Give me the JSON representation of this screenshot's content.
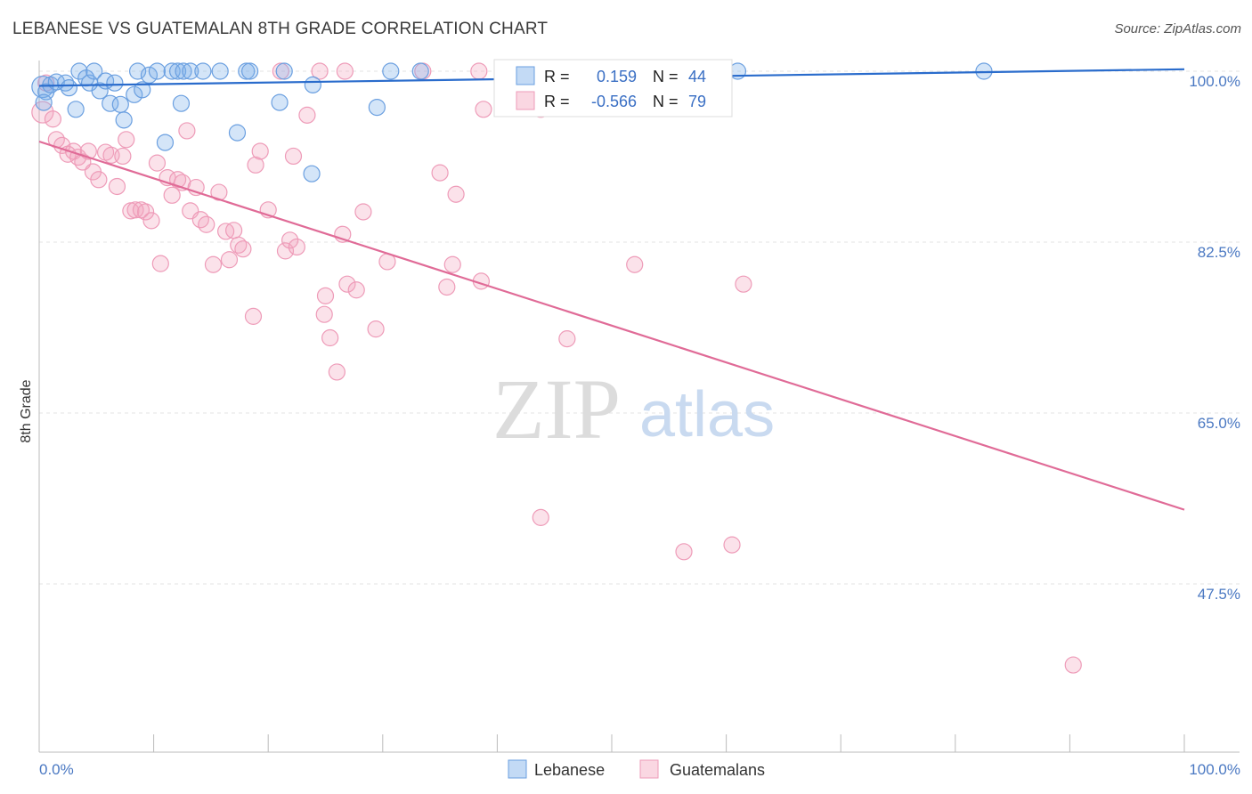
{
  "title": "LEBANESE VS GUATEMALAN 8TH GRADE CORRELATION CHART",
  "source": "Source: ZipAtlas.com",
  "chart_data": {
    "type": "scatter",
    "title": "LEBANESE VS GUATEMALAN 8TH GRADE CORRELATION CHART",
    "xlabel": "",
    "ylabel": "8th Grade",
    "xlim": [
      0,
      100
    ],
    "ylim": [
      34,
      100
    ],
    "x_tick_labels": [
      "0.0%",
      "100.0%"
    ],
    "y_ticks": [
      47.5,
      65.0,
      82.5,
      100.0
    ],
    "y_tick_labels": [
      "47.5%",
      "65.0%",
      "82.5%",
      "100.0%"
    ],
    "grid": true,
    "legend_position": "top-center",
    "watermark": {
      "zip": "ZIP",
      "atlas": "atlas"
    },
    "colors": {
      "lebanese": "#7aaee8",
      "lebanese_line": "#2a6ccc",
      "guatemalans": "#f4a6bf",
      "guatemalans_line": "#e06b97"
    },
    "stats": [
      {
        "r_label": "R =",
        "r_value": "0.159",
        "n_label": "N =",
        "n_value": "44"
      },
      {
        "r_label": "R =",
        "r_value": "-0.566",
        "n_label": "N =",
        "n_value": "79"
      }
    ],
    "series": [
      {
        "name": "Lebanese",
        "trend": [
          [
            0,
            98.5
          ],
          [
            100,
            100.2
          ]
        ],
        "points": [
          [
            0.3,
            98.4
          ],
          [
            0.6,
            97.9
          ],
          [
            1.0,
            98.6
          ],
          [
            1.5,
            98.9
          ],
          [
            2.3,
            98.8
          ],
          [
            3.2,
            96.1
          ],
          [
            3.5,
            100.0
          ],
          [
            4.1,
            99.3
          ],
          [
            4.4,
            98.8
          ],
          [
            4.8,
            100.0
          ],
          [
            5.3,
            98.0
          ],
          [
            5.8,
            99.0
          ],
          [
            6.2,
            96.7
          ],
          [
            7.1,
            96.6
          ],
          [
            7.4,
            95.0
          ],
          [
            8.3,
            97.6
          ],
          [
            8.6,
            100.0
          ],
          [
            9.0,
            98.1
          ],
          [
            9.6,
            99.6
          ],
          [
            10.3,
            100.0
          ],
          [
            11.0,
            92.7
          ],
          [
            11.6,
            100.0
          ],
          [
            12.1,
            100.0
          ],
          [
            12.4,
            96.7
          ],
          [
            12.6,
            100.0
          ],
          [
            13.2,
            100.0
          ],
          [
            14.3,
            100.0
          ],
          [
            15.8,
            100.0
          ],
          [
            17.3,
            93.7
          ],
          [
            18.1,
            100.0
          ],
          [
            18.4,
            100.0
          ],
          [
            21.0,
            96.8
          ],
          [
            21.4,
            100.0
          ],
          [
            23.8,
            89.5
          ],
          [
            23.9,
            98.6
          ],
          [
            29.5,
            96.3
          ],
          [
            30.7,
            100.0
          ],
          [
            33.3,
            100.0
          ],
          [
            41.1,
            100.0
          ],
          [
            61.0,
            100.0
          ],
          [
            82.5,
            100.0
          ],
          [
            0.4,
            96.8
          ],
          [
            2.6,
            98.3
          ],
          [
            6.6,
            98.8
          ]
        ],
        "radii": [
          12,
          9,
          9,
          9,
          9,
          9,
          9,
          9,
          9,
          9,
          9,
          9,
          9,
          9,
          9,
          9,
          9,
          9,
          9,
          9,
          9,
          9,
          9,
          9,
          9,
          9,
          9,
          9,
          9,
          9,
          9,
          9,
          9,
          9,
          9,
          9,
          9,
          9,
          9,
          9,
          9,
          9,
          9,
          9
        ]
      },
      {
        "name": "Guatemalans",
        "trend": [
          [
            0,
            92.8
          ],
          [
            100,
            55.1
          ]
        ],
        "points": [
          [
            0.3,
            95.8
          ],
          [
            0.6,
            98.8
          ],
          [
            1.2,
            95.1
          ],
          [
            1.5,
            93.0
          ],
          [
            2.0,
            92.4
          ],
          [
            2.5,
            91.5
          ],
          [
            3.0,
            91.8
          ],
          [
            3.4,
            91.2
          ],
          [
            3.8,
            90.7
          ],
          [
            4.3,
            91.8
          ],
          [
            4.7,
            89.7
          ],
          [
            5.2,
            88.9
          ],
          [
            5.8,
            91.7
          ],
          [
            6.3,
            91.4
          ],
          [
            6.8,
            88.2
          ],
          [
            7.3,
            91.3
          ],
          [
            7.6,
            93.0
          ],
          [
            8.0,
            85.7
          ],
          [
            8.4,
            85.8
          ],
          [
            8.9,
            85.8
          ],
          [
            9.3,
            85.6
          ],
          [
            9.8,
            84.7
          ],
          [
            10.3,
            90.6
          ],
          [
            10.6,
            80.3
          ],
          [
            11.2,
            89.1
          ],
          [
            11.6,
            87.3
          ],
          [
            12.1,
            88.9
          ],
          [
            12.5,
            88.6
          ],
          [
            12.9,
            93.9
          ],
          [
            13.2,
            85.7
          ],
          [
            13.7,
            88.1
          ],
          [
            14.1,
            84.8
          ],
          [
            14.6,
            84.3
          ],
          [
            15.2,
            80.2
          ],
          [
            15.7,
            87.6
          ],
          [
            16.3,
            83.6
          ],
          [
            16.6,
            80.7
          ],
          [
            17.0,
            83.7
          ],
          [
            17.4,
            82.2
          ],
          [
            17.8,
            81.8
          ],
          [
            18.7,
            74.9
          ],
          [
            18.9,
            90.4
          ],
          [
            19.3,
            91.8
          ],
          [
            20.0,
            85.8
          ],
          [
            21.1,
            100.0
          ],
          [
            21.5,
            81.6
          ],
          [
            21.9,
            82.7
          ],
          [
            22.2,
            91.3
          ],
          [
            22.5,
            82.0
          ],
          [
            23.4,
            95.5
          ],
          [
            24.5,
            100.0
          ],
          [
            24.9,
            75.1
          ],
          [
            25.0,
            77.0
          ],
          [
            25.4,
            72.7
          ],
          [
            26.0,
            69.2
          ],
          [
            26.5,
            83.3
          ],
          [
            26.7,
            100.0
          ],
          [
            26.9,
            78.2
          ],
          [
            27.7,
            77.6
          ],
          [
            28.3,
            85.6
          ],
          [
            29.4,
            73.6
          ],
          [
            30.4,
            80.5
          ],
          [
            33.5,
            100.0
          ],
          [
            35.0,
            89.6
          ],
          [
            35.6,
            77.9
          ],
          [
            36.1,
            80.2
          ],
          [
            36.4,
            87.4
          ],
          [
            38.4,
            100.0
          ],
          [
            38.6,
            78.5
          ],
          [
            38.8,
            96.1
          ],
          [
            43.8,
            96.1
          ],
          [
            43.8,
            54.3
          ],
          [
            46.1,
            72.6
          ],
          [
            52.0,
            80.2
          ],
          [
            56.3,
            50.8
          ],
          [
            58.8,
            100.0
          ],
          [
            60.5,
            51.5
          ],
          [
            61.5,
            78.2
          ],
          [
            90.3,
            39.2
          ]
        ],
        "radii": [
          12,
          9,
          9,
          9,
          9,
          9,
          9,
          9,
          9,
          9,
          9,
          9,
          9,
          9,
          9,
          9,
          9,
          9,
          9,
          9,
          9,
          9,
          9,
          9,
          9,
          9,
          9,
          9,
          9,
          9,
          9,
          9,
          9,
          9,
          9,
          9,
          9,
          9,
          9,
          9,
          9,
          9,
          9,
          9,
          9,
          9,
          9,
          9,
          9,
          9,
          9,
          9,
          9,
          9,
          9,
          9,
          9,
          9,
          9,
          9,
          9,
          9,
          9,
          9,
          9,
          9,
          9,
          9,
          9,
          9,
          9,
          9,
          9,
          9,
          9,
          9,
          9,
          9,
          9
        ]
      }
    ]
  }
}
